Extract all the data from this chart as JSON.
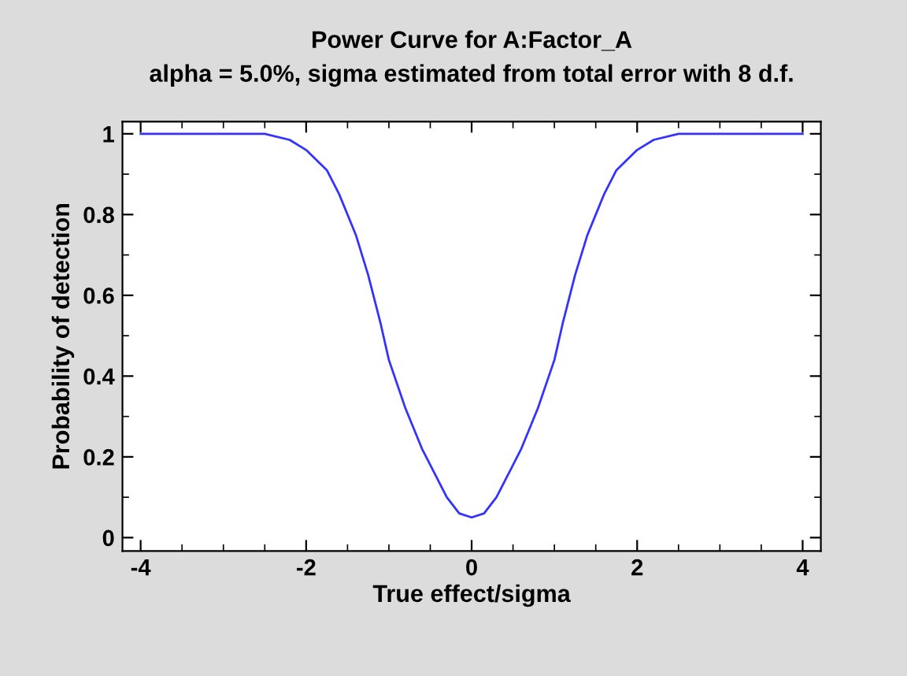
{
  "chart_data": {
    "type": "line",
    "title": "Power Curve for A:Factor_A",
    "subtitle": "alpha = 5.0%, sigma estimated from total error with 8 d.f.",
    "xlabel": "True effect/sigma",
    "ylabel": "Probability of detection",
    "series": [
      {
        "color": "#3333ff",
        "x": [
          -4,
          -3,
          -2.5,
          -2.2,
          -2,
          -1.75,
          -1.6,
          -1.4,
          -1.25,
          -1.1,
          -1,
          -0.8,
          -0.6,
          -0.3,
          -0.15,
          0,
          0.15,
          0.3,
          0.6,
          0.8,
          1,
          1.1,
          1.25,
          1.4,
          1.6,
          1.75,
          2,
          2.2,
          2.5,
          3,
          4
        ],
        "values": [
          1,
          1,
          1,
          0.985,
          0.96,
          0.91,
          0.85,
          0.75,
          0.65,
          0.53,
          0.44,
          0.32,
          0.22,
          0.1,
          0.06,
          0.05,
          0.06,
          0.1,
          0.22,
          0.32,
          0.44,
          0.53,
          0.65,
          0.75,
          0.85,
          0.91,
          0.96,
          0.985,
          1,
          1,
          1
        ]
      }
    ],
    "xlim": [
      -4.22,
      4.22
    ],
    "ylim": [
      -0.033,
      1.03
    ],
    "xticks": [
      -4,
      -2,
      0,
      2,
      4
    ],
    "yticks": [
      0,
      0.2,
      0.4,
      0.6,
      0.8,
      1
    ],
    "grid": false,
    "legend": false,
    "marker": "none",
    "line_style": "solid"
  }
}
